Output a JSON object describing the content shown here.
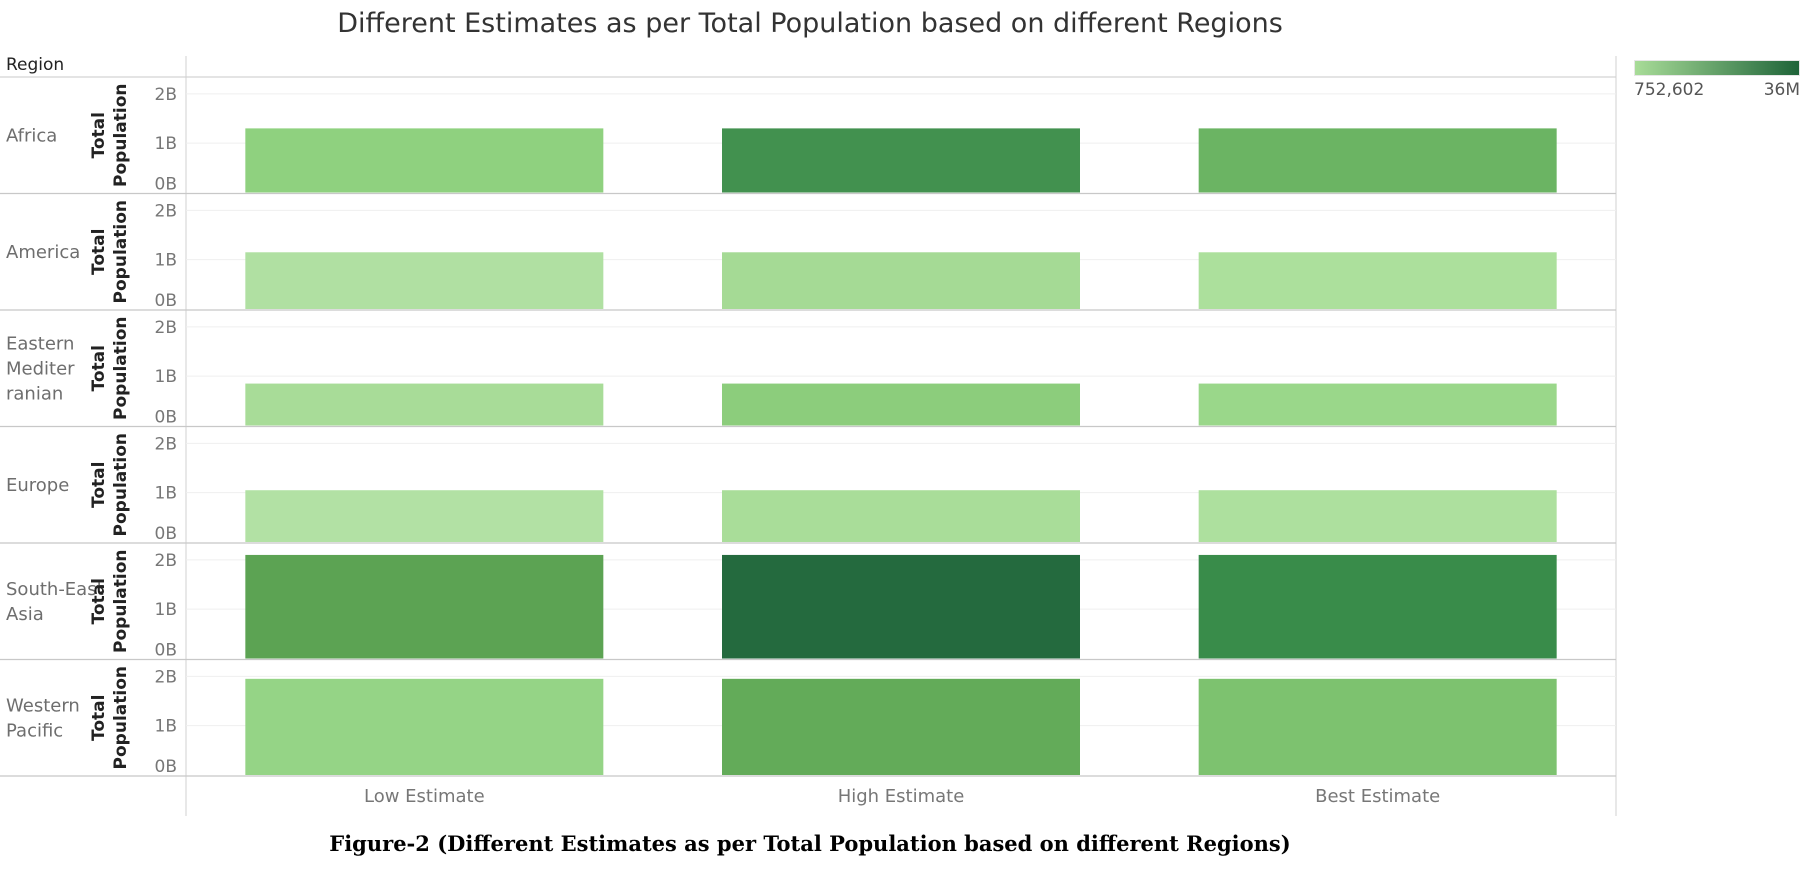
{
  "title": "Different Estimates as per Total Population based on different Regions",
  "caption": "Figure-2 (Different Estimates as per Total Population based on different Regions)",
  "region_header": "Region",
  "legend": {
    "min_label": "752,602",
    "max_label": "36M",
    "color_low": "#a8dc98",
    "color_high": "#1f6439"
  },
  "chart_data": {
    "type": "bar",
    "title": "Different Estimates as per Total Population based on different Regions",
    "facet_label": "Region",
    "ylabel": "Total Population",
    "y_ticks": [
      "2B",
      "1B",
      "0B"
    ],
    "ylim": [
      0,
      2.2
    ],
    "categories": [
      "Low Estimate",
      "High Estimate",
      "Best Estimate"
    ],
    "color_legend": {
      "min": "752,602",
      "max": "36M"
    },
    "regions": [
      {
        "name": "Africa",
        "values": [
          1.3,
          1.3,
          1.3
        ],
        "colors": [
          "#8fd17f",
          "#42914f",
          "#6bb463"
        ]
      },
      {
        "name": "America",
        "values": [
          1.15,
          1.15,
          1.15
        ],
        "colors": [
          "#b0e0a2",
          "#a5da95",
          "#ace09c"
        ]
      },
      {
        "name": "Eastern Mediterranian",
        "values": [
          0.85,
          0.85,
          0.85
        ],
        "colors": [
          "#a8dc98",
          "#8ccd7c",
          "#9ad78a"
        ]
      },
      {
        "name": "Europe",
        "values": [
          1.05,
          1.05,
          1.05
        ],
        "colors": [
          "#b2e1a4",
          "#a9dd99",
          "#ade09e"
        ]
      },
      {
        "name": "South-East Asia",
        "values": [
          2.1,
          2.1,
          2.1
        ],
        "colors": [
          "#5ca353",
          "#246a3e",
          "#398c4a"
        ]
      },
      {
        "name": "Western Pacific",
        "values": [
          1.95,
          1.95,
          1.95
        ],
        "colors": [
          "#95d486",
          "#63ab59",
          "#7dc26f"
        ]
      }
    ]
  }
}
